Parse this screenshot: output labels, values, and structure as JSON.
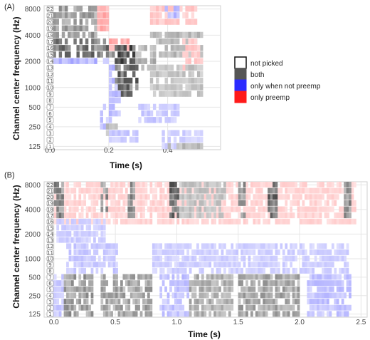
{
  "colors": {
    "both": "#555555",
    "only_not_preemp": "#2b2bff",
    "only_preemp": "#ff1a1a",
    "grid": "#e6e6e6",
    "panel_border": "#cfcfcf"
  },
  "legend": {
    "items": [
      {
        "key": "not_picked",
        "label": "not picked"
      },
      {
        "key": "both",
        "label": "both"
      },
      {
        "key": "only_not_preemp",
        "label": "only when not preemp"
      },
      {
        "key": "only_preemp",
        "label": "only preemp"
      }
    ]
  },
  "chart_data": [
    {
      "type": "heatmap",
      "panel_label": "(A)",
      "xlabel": "Time (s)",
      "ylabel": "Channel center frequency (Hz)",
      "xlim": [
        -0.02,
        0.58
      ],
      "x_ticks": [
        0.0,
        0.2,
        0.4
      ],
      "x_tick_labels": [
        "0.0",
        "0.2",
        "0.4"
      ],
      "y_tick_labels": [
        "125",
        "250",
        "500",
        "1000",
        "2000",
        "4000",
        "8000"
      ],
      "y_tick_channels": [
        1,
        4,
        7,
        10,
        14,
        18,
        22
      ],
      "channels": [
        1,
        2,
        3,
        4,
        5,
        6,
        7,
        8,
        9,
        10,
        11,
        12,
        13,
        14,
        15,
        16,
        17,
        18,
        19,
        20,
        21,
        22
      ],
      "frame_step_s": 0.01,
      "category_legend": [
        "not picked",
        "both",
        "only when not preemp",
        "only preemp"
      ],
      "regions": [
        {
          "c1": 18,
          "c2": 22,
          "t1": 0.0,
          "t2": 0.16,
          "cat": "both",
          "level": 0.38
        },
        {
          "c1": 19,
          "c2": 22,
          "t1": 0.16,
          "t2": 0.2,
          "cat": "only_preemp",
          "level": 0.5
        },
        {
          "c1": 15,
          "c2": 17,
          "t1": 0.0,
          "t2": 0.22,
          "cat": "both",
          "level": 0.55
        },
        {
          "c1": 14,
          "c2": 14,
          "t1": 0.0,
          "t2": 0.2,
          "cat": "only_not_preemp",
          "level": 0.45
        },
        {
          "c1": 16,
          "c2": 17,
          "t1": 0.2,
          "t2": 0.27,
          "cat": "only_preemp",
          "level": 0.6
        },
        {
          "c1": 14,
          "c2": 16,
          "t1": 0.22,
          "t2": 0.29,
          "cat": "both",
          "level": 0.8
        },
        {
          "c1": 13,
          "c2": 16,
          "t1": 0.29,
          "t2": 0.36,
          "cat": "both",
          "level": 0.3
        },
        {
          "c1": 9,
          "c2": 13,
          "t1": 0.22,
          "t2": 0.3,
          "cat": "both",
          "level": 0.6
        },
        {
          "c1": 6,
          "c2": 10,
          "t1": 0.2,
          "t2": 0.24,
          "cat": "only_not_preemp",
          "level": 0.4
        },
        {
          "c1": 11,
          "c2": 13,
          "t1": 0.2,
          "t2": 0.22,
          "cat": "only_not_preemp",
          "level": 0.4
        },
        {
          "c1": 4,
          "c2": 7,
          "t1": 0.17,
          "t2": 0.21,
          "cat": "only_not_preemp",
          "level": 0.35
        },
        {
          "c1": 3,
          "c2": 4,
          "t1": 0.19,
          "t2": 0.23,
          "cat": "both",
          "level": 0.25
        },
        {
          "c1": 2,
          "c2": 3,
          "t1": 0.2,
          "t2": 0.3,
          "cat": "only_not_preemp",
          "level": 0.3
        },
        {
          "c1": 20,
          "c2": 22,
          "t1": 0.34,
          "t2": 0.5,
          "cat": "only_preemp",
          "level": 0.3
        },
        {
          "c1": 21,
          "c2": 22,
          "t1": 0.38,
          "t2": 0.44,
          "cat": "only_not_preemp",
          "level": 0.4
        },
        {
          "c1": 15,
          "c2": 18,
          "t1": 0.34,
          "t2": 0.52,
          "cat": "both",
          "level": 0.25
        },
        {
          "c1": 13,
          "c2": 17,
          "t1": 0.45,
          "t2": 0.52,
          "cat": "only_preemp",
          "level": 0.3
        },
        {
          "c1": 9,
          "c2": 13,
          "t1": 0.34,
          "t2": 0.52,
          "cat": "both",
          "level": 0.2
        },
        {
          "c1": 5,
          "c2": 7,
          "t1": 0.3,
          "t2": 0.44,
          "cat": "only_not_preemp",
          "level": 0.3
        },
        {
          "c1": 1,
          "c2": 3,
          "t1": 0.38,
          "t2": 0.52,
          "cat": "only_not_preemp",
          "level": 0.25
        },
        {
          "c1": 1,
          "c2": 1,
          "t1": 0.4,
          "t2": 0.52,
          "cat": "both",
          "level": 0.25
        }
      ]
    },
    {
      "type": "heatmap",
      "panel_label": "(B)",
      "xlabel": "Time (s)",
      "ylabel": "Channel center frequency (Hz)",
      "xlim": [
        -0.08,
        2.55
      ],
      "x_ticks": [
        0.0,
        0.5,
        1.0,
        1.5,
        2.0,
        2.5
      ],
      "x_tick_labels": [
        "0.0",
        "0.5",
        "1.0",
        "1.5",
        "2.0",
        "2.5"
      ],
      "y_tick_labels": [
        "125",
        "250",
        "500",
        "1000",
        "2000",
        "4000",
        "8000"
      ],
      "y_tick_channels": [
        1,
        4,
        7,
        10,
        14,
        18,
        22
      ],
      "channels": [
        1,
        2,
        3,
        4,
        5,
        6,
        7,
        8,
        9,
        10,
        11,
        12,
        13,
        14,
        15,
        16,
        17,
        18,
        19,
        20,
        21,
        22
      ],
      "frame_step_s": 0.02,
      "category_legend": [
        "not picked",
        "both",
        "only when not preemp",
        "only preemp"
      ],
      "regions": [
        {
          "c1": 16,
          "c2": 22,
          "t1": 0.0,
          "t2": 2.45,
          "cat": "only_preemp",
          "level": 0.22
        },
        {
          "c1": 17,
          "c2": 22,
          "t1": 0.0,
          "t2": 0.08,
          "cat": "both",
          "level": 0.5
        },
        {
          "c1": 17,
          "c2": 22,
          "t1": 0.38,
          "t2": 0.44,
          "cat": "both",
          "level": 0.45
        },
        {
          "c1": 17,
          "c2": 22,
          "t1": 0.6,
          "t2": 0.66,
          "cat": "both",
          "level": 0.45
        },
        {
          "c1": 17,
          "c2": 22,
          "t1": 0.94,
          "t2": 1.02,
          "cat": "both",
          "level": 0.7
        },
        {
          "c1": 17,
          "c2": 22,
          "t1": 1.02,
          "t2": 1.4,
          "cat": "both",
          "level": 0.2
        },
        {
          "c1": 17,
          "c2": 22,
          "t1": 1.5,
          "t2": 1.56,
          "cat": "both",
          "level": 0.45
        },
        {
          "c1": 17,
          "c2": 22,
          "t1": 1.74,
          "t2": 1.82,
          "cat": "both",
          "level": 0.6
        },
        {
          "c1": 17,
          "c2": 22,
          "t1": 2.36,
          "t2": 2.42,
          "cat": "both",
          "level": 0.45
        },
        {
          "c1": 13,
          "c2": 16,
          "t1": 0.02,
          "t2": 0.42,
          "cat": "only_not_preemp",
          "level": 0.25
        },
        {
          "c1": 8,
          "c2": 12,
          "t1": 0.1,
          "t2": 0.52,
          "cat": "only_not_preemp",
          "level": 0.3
        },
        {
          "c1": 8,
          "c2": 12,
          "t1": 0.8,
          "t2": 2.4,
          "cat": "only_not_preemp",
          "level": 0.25
        },
        {
          "c1": 1,
          "c2": 7,
          "t1": -0.02,
          "t2": 0.08,
          "cat": "only_not_preemp",
          "level": 0.3
        },
        {
          "c1": 1,
          "c2": 7,
          "t1": 0.08,
          "t2": 0.32,
          "cat": "both",
          "level": 0.4
        },
        {
          "c1": 1,
          "c2": 7,
          "t1": 0.38,
          "t2": 0.8,
          "cat": "both",
          "level": 0.35
        },
        {
          "c1": 1,
          "c2": 7,
          "t1": 0.86,
          "t2": 1.1,
          "cat": "only_not_preemp",
          "level": 0.35
        },
        {
          "c1": 1,
          "c2": 7,
          "t1": 1.1,
          "t2": 1.46,
          "cat": "both",
          "level": 0.3
        },
        {
          "c1": 1,
          "c2": 7,
          "t1": 1.5,
          "t2": 2.0,
          "cat": "both",
          "level": 0.35
        },
        {
          "c1": 1,
          "c2": 7,
          "t1": 2.06,
          "t2": 2.42,
          "cat": "only_not_preemp",
          "level": 0.35
        }
      ]
    }
  ]
}
